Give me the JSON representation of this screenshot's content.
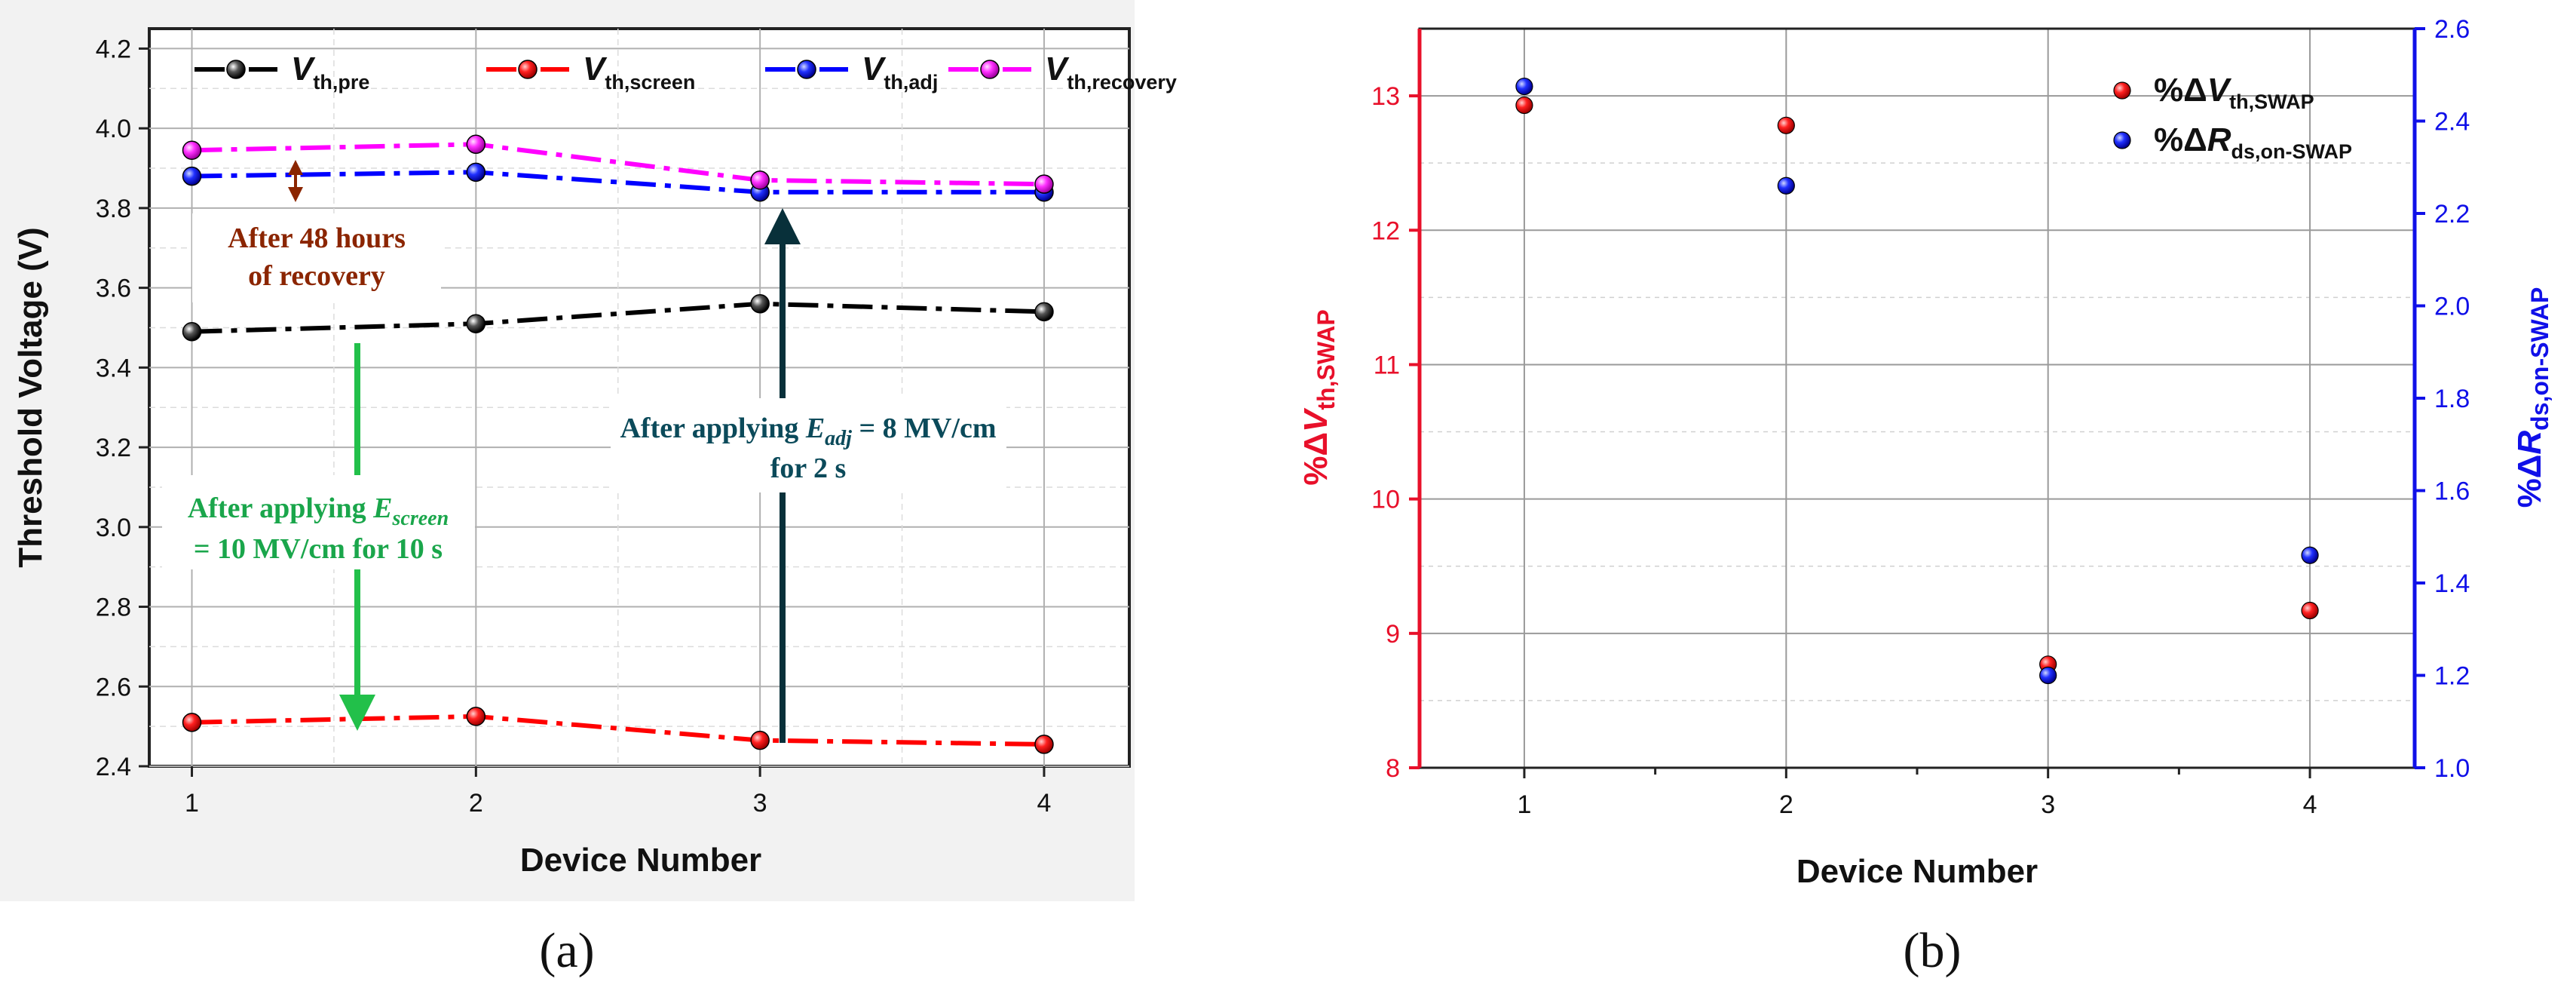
{
  "chart_data": [
    {
      "id": "a",
      "type": "line",
      "panel_label": "(a)",
      "xlabel": "Device Number",
      "ylabel": "Threshold Voltage (V)",
      "categories": [
        1,
        2,
        3,
        4
      ],
      "xlim": [
        0.85,
        4.3
      ],
      "ylim": [
        2.4,
        4.25
      ],
      "yticks": [
        2.4,
        2.6,
        2.8,
        3.0,
        3.2,
        3.4,
        3.6,
        3.8,
        4.0,
        4.2
      ],
      "ytick_labels": [
        "2.4",
        "2.6",
        "2.8",
        "3.0",
        "3.2",
        "3.4",
        "3.6",
        "3.8",
        "4.0",
        "4.2"
      ],
      "xtick_labels": [
        "1",
        "2",
        "3",
        "4"
      ],
      "grid": true,
      "legend_position": "top",
      "series": [
        {
          "key": "pre",
          "name_main": "V",
          "name_sub": "th,pre",
          "color": "#000000",
          "values": [
            3.49,
            3.51,
            3.56,
            3.54
          ]
        },
        {
          "key": "screen",
          "name_main": "V",
          "name_sub": "th,screen",
          "color": "#ff0000",
          "values": [
            2.51,
            2.525,
            2.465,
            2.455
          ]
        },
        {
          "key": "adj",
          "name_main": "V",
          "name_sub": "th,adj",
          "color": "#0000ff",
          "values": [
            3.88,
            3.89,
            3.84,
            3.84
          ]
        },
        {
          "key": "recovery",
          "name_main": "V",
          "name_sub": "th,recovery",
          "color": "#ff00ff",
          "values": [
            3.945,
            3.96,
            3.87,
            3.86
          ]
        }
      ],
      "annotations": {
        "recovery": {
          "line1": "After 48 hours",
          "line2": "of recovery",
          "color": "#8b2500"
        },
        "screen": {
          "line1_prefix": "After applying ",
          "line1_var": "E",
          "line1_sub": "screen",
          "line2": "= 10 MV/cm for 10 s",
          "color": "#1aa64b",
          "arrow_color": "#22c04a"
        },
        "adj": {
          "line1_prefix": "After applying ",
          "line1_var": "E",
          "line1_sub": "adj",
          "line1_suffix": " = 8 MV/cm",
          "line2": "for 2 s",
          "color": "#0b4a5a",
          "arrow_color": "#08303a"
        }
      }
    },
    {
      "id": "b",
      "type": "scatter",
      "panel_label": "(b)",
      "xlabel": "Device Number",
      "xlim": [
        0.6,
        4.4
      ],
      "xtick_labels": [
        "1",
        "2",
        "3",
        "4"
      ],
      "grid": true,
      "legend_position": "top-right",
      "left_axis": {
        "label_prefix": "%Δ",
        "label_var": "V",
        "label_sub": "th,SWAP",
        "color": "#e8102a",
        "ylim": [
          8,
          13.5
        ],
        "yticks": [
          8,
          9,
          10,
          11,
          12,
          13
        ],
        "ytick_labels": [
          "8",
          "9",
          "10",
          "11",
          "12",
          "13"
        ]
      },
      "right_axis": {
        "label_prefix": "%Δ",
        "label_var": "R",
        "label_sub": "ds,on-SWAP",
        "color": "#1010e8",
        "ylim": [
          1.0,
          2.6
        ],
        "yticks": [
          1.0,
          1.2,
          1.4,
          1.6,
          1.8,
          2.0,
          2.2,
          2.4,
          2.6
        ],
        "ytick_labels": [
          "1.0",
          "1.2",
          "1.4",
          "1.6",
          "1.8",
          "2.0",
          "2.2",
          "2.4",
          "2.6"
        ]
      },
      "series": [
        {
          "key": "vth",
          "axis": "left",
          "name_prefix": "%Δ",
          "name_var": "V",
          "name_sub": "th,SWAP",
          "color": "#ff0000",
          "x": [
            1,
            2,
            3,
            4
          ],
          "values": [
            12.93,
            12.78,
            8.77,
            9.17
          ]
        },
        {
          "key": "rds",
          "axis": "right",
          "name_prefix": "%Δ",
          "name_var": "R",
          "name_sub": "ds,on-SWAP",
          "color": "#0000ff",
          "x": [
            1,
            2,
            3,
            4
          ],
          "values": [
            2.475,
            2.26,
            1.2,
            1.46
          ]
        }
      ]
    }
  ]
}
